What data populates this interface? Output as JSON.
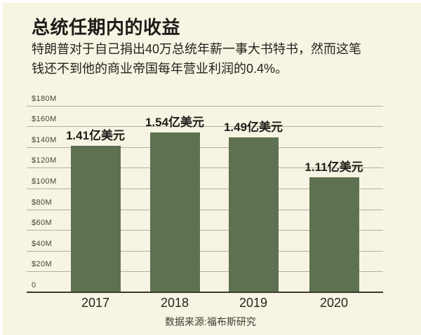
{
  "page": {
    "title": "总统任期内的收益",
    "subtitle": "特朗普对于自己捐出40万总统年薪一事大书特书，然而这笔钱还不到他的商业帝国每年营业利润的0.4%。",
    "source": "数据来源:福布斯研究"
  },
  "chart_data": {
    "type": "bar",
    "title": "总统任期内的收益",
    "subtitle": "特朗普对于自己捐出40万总统年薪一事大书特书，然而这笔钱还不到他的商业帝国每年营业利润的0.4%。",
    "categories": [
      "2017",
      "2018",
      "2019",
      "2020"
    ],
    "values": [
      141,
      154,
      149,
      111
    ],
    "value_labels": [
      "1.41亿美元",
      "1.54亿美元",
      "1.49亿美元",
      "1.11亿美元"
    ],
    "y_unit": "$M",
    "ylim": [
      0,
      180
    ],
    "yticks": [
      {
        "value": 180,
        "label": "$180M"
      },
      {
        "value": 160,
        "label": "$160M"
      },
      {
        "value": 140,
        "label": "$140M"
      },
      {
        "value": 120,
        "label": "$120M"
      },
      {
        "value": 100,
        "label": "$100M"
      },
      {
        "value": 80,
        "label": "$80M"
      },
      {
        "value": 60,
        "label": "$60M"
      },
      {
        "value": 40,
        "label": "$40M"
      },
      {
        "value": 20,
        "label": "$20M"
      },
      {
        "value": 0,
        "label": "0"
      }
    ],
    "grid": true,
    "legend": false,
    "source": "数据来源:福布斯研究",
    "colors": {
      "bar": "#5e7150",
      "background": "#f8f4e4",
      "grid": "#b3af9e",
      "axis": "#3a392f",
      "text": "#1d1c17"
    }
  }
}
